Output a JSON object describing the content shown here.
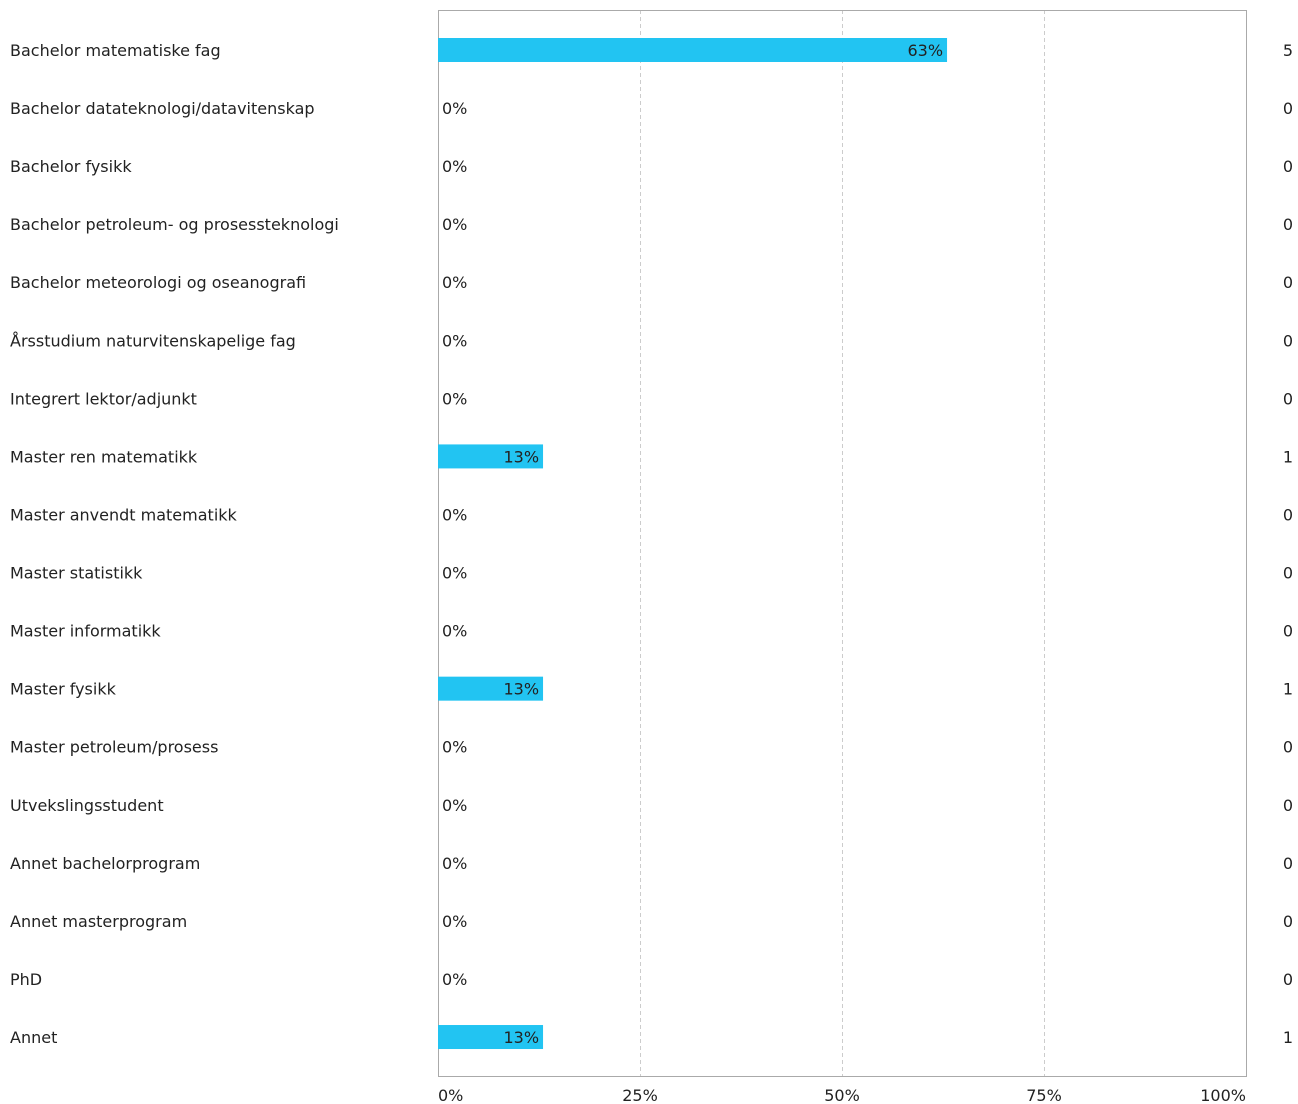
{
  "chart_data": {
    "type": "bar",
    "orientation": "horizontal",
    "title": "",
    "xlabel": "",
    "ylabel": "",
    "xlim": [
      0,
      100
    ],
    "x_ticks": [
      "0%",
      "25%",
      "50%",
      "75%",
      "100%"
    ],
    "grid": "vertical dashed",
    "bar_color": "#22c4f2",
    "categories": [
      "Bachelor matematiske fag",
      "Bachelor datateknologi/datavitenskap",
      "Bachelor fysikk",
      "Bachelor petroleum- og prosessteknologi",
      "Bachelor meteorologi og oseanografi",
      "Årsstudium naturvitenskapelige fag",
      "Integrert lektor/adjunkt",
      "Master ren matematikk",
      "Master anvendt matematikk",
      "Master statistikk",
      "Master informatikk",
      "Master fysikk",
      "Master petroleum/prosess",
      "Utvekslingsstudent",
      "Annet bachelorprogram",
      "Annet masterprogram",
      "PhD",
      "Annet"
    ],
    "values": [
      63,
      0,
      0,
      0,
      0,
      0,
      0,
      13,
      0,
      0,
      0,
      13,
      0,
      0,
      0,
      0,
      0,
      13
    ],
    "value_labels": [
      "63%",
      "0%",
      "0%",
      "0%",
      "0%",
      "0%",
      "0%",
      "13%",
      "0%",
      "0%",
      "0%",
      "13%",
      "0%",
      "0%",
      "0%",
      "0%",
      "0%",
      "13%"
    ],
    "counts": [
      5,
      0,
      0,
      0,
      0,
      0,
      0,
      1,
      0,
      0,
      0,
      1,
      0,
      0,
      0,
      0,
      0,
      1
    ]
  }
}
